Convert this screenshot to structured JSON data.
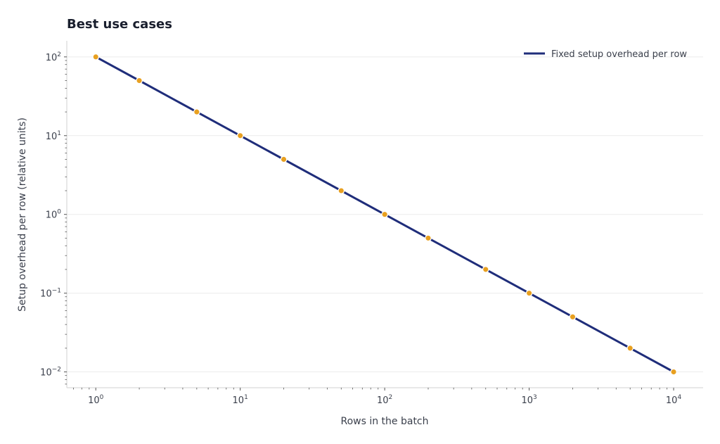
{
  "colors": {
    "line": "#1f2d7a",
    "marker": "#e8a020",
    "grid": "#ececec",
    "axis": "#d0d0d0",
    "tick": "#555555"
  },
  "chart_data": {
    "type": "line",
    "title": "Best use cases",
    "xlabel": "Rows in the batch",
    "ylabel": "Setup overhead per row (relative units)",
    "xscale": "log",
    "yscale": "log",
    "xlim": [
      0.63,
      16000
    ],
    "ylim": [
      0.0063,
      160
    ],
    "grid": "horizontal",
    "legend_position": "top-right",
    "x_ticks": [
      {
        "value": 1,
        "base": "10",
        "exp": "0"
      },
      {
        "value": 10,
        "base": "10",
        "exp": "1"
      },
      {
        "value": 100,
        "base": "10",
        "exp": "2"
      },
      {
        "value": 1000,
        "base": "10",
        "exp": "3"
      },
      {
        "value": 10000,
        "base": "10",
        "exp": "4"
      }
    ],
    "y_ticks": [
      {
        "value": 100,
        "base": "10",
        "exp": "2"
      },
      {
        "value": 10,
        "base": "10",
        "exp": "1"
      },
      {
        "value": 1,
        "base": "10",
        "exp": "0"
      },
      {
        "value": 0.1,
        "base": "10",
        "exp": "−1"
      },
      {
        "value": 0.01,
        "base": "10",
        "exp": "−2"
      }
    ],
    "series": [
      {
        "name": "Fixed setup overhead per row",
        "x": [
          1,
          2,
          5,
          10,
          20,
          50,
          100,
          200,
          500,
          1000,
          2000,
          5000,
          10000
        ],
        "y": [
          100,
          50,
          20,
          10,
          5,
          2,
          1,
          0.5,
          0.2,
          0.1,
          0.05,
          0.02,
          0.01
        ]
      }
    ]
  }
}
